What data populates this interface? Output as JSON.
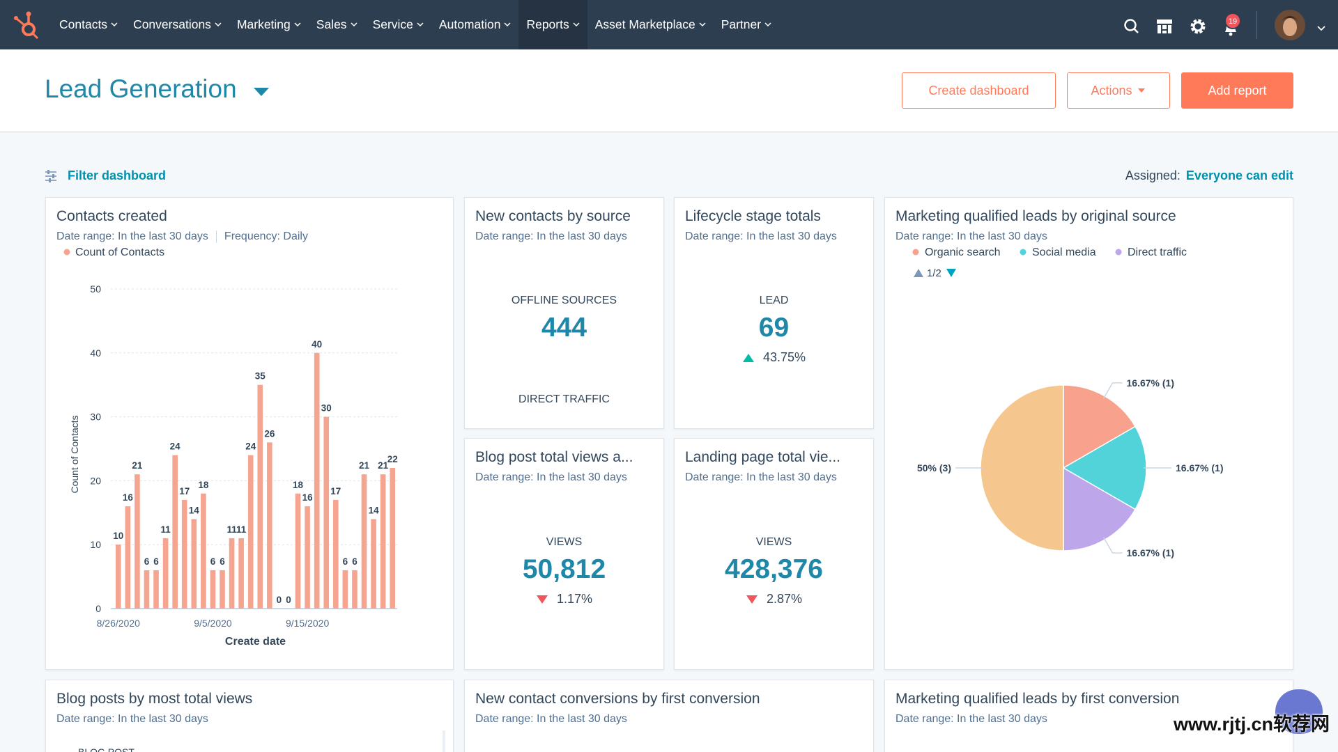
{
  "nav": {
    "items": [
      "Contacts",
      "Conversations",
      "Marketing",
      "Sales",
      "Service",
      "Automation",
      "Reports",
      "Asset Marketplace",
      "Partner"
    ],
    "active_index": 6,
    "notification_count": "19"
  },
  "header": {
    "title": "Lead Generation",
    "buttons": [
      "Create dashboard",
      "Actions",
      "Add report"
    ]
  },
  "toolbar": {
    "filter": "Filter dashboard",
    "assigned_label": "Assigned:",
    "assigned_value": "Everyone can edit"
  },
  "widgets": [
    {
      "title": "Contacts created",
      "date_range": "Date range: In the last 30 days",
      "frequency": "Frequency: Daily",
      "chart_data": {
        "type": "bar",
        "x_label": "Create date",
        "y_label": "Count of Contacts",
        "categories": [
          "8/26/2020",
          null,
          null,
          null,
          null,
          null,
          null,
          null,
          null,
          null,
          "9/5/2020",
          null,
          null,
          null,
          null,
          null,
          null,
          null,
          null,
          null,
          "9/15/2020",
          null,
          null,
          null,
          null,
          null,
          null,
          null,
          null,
          null
        ],
        "series": [
          {
            "name": "Count of Contacts",
            "color": "#f5a48f",
            "values": [
              10,
              16,
              21,
              6,
              6,
              11,
              24,
              17,
              14,
              18,
              6,
              6,
              11,
              11,
              24,
              35,
              26,
              0,
              0,
              18,
              16,
              40,
              30,
              17,
              6,
              6,
              21,
              14,
              21,
              22
            ]
          }
        ],
        "ylim": [
          0,
          50
        ],
        "yticks": [
          0,
          10,
          20,
          30,
          40,
          50
        ],
        "grid": true
      }
    },
    {
      "title": "New contacts by source",
      "date_range": "Date range: In the last 30 days",
      "kpis": [
        {
          "label": "OFFLINE SOURCES",
          "value": "444"
        },
        {
          "label": "DIRECT TRAFFIC"
        }
      ]
    },
    {
      "title": "Lifecycle stage totals",
      "date_range": "Date range: In the last 30 days",
      "kpis": [
        {
          "label": "LEAD",
          "value": "69",
          "change": "43.75%",
          "trend": "up"
        }
      ]
    },
    {
      "title": "Marketing qualified leads by original source",
      "date_range": "Date range: In the last 30 days",
      "chart_data": {
        "type": "pie",
        "categories": [
          "Organic search",
          "Social media",
          "Direct traffic",
          null
        ],
        "values": [
          1,
          1,
          1,
          3
        ],
        "value_labels": [
          "16.67% (1)",
          "16.67% (1)",
          "16.67% (1)",
          "50% (3)"
        ],
        "colors": [
          "#f8a18c",
          "#51d3d9",
          "#bda6ea",
          "#f5c78e"
        ],
        "legend_page": "1/2"
      }
    },
    {
      "title": "Blog post total views a...",
      "date_range": "Date range: In the last 30 days",
      "kpis": [
        {
          "label": "VIEWS",
          "value": "50,812",
          "change": "1.17%",
          "trend": "down"
        }
      ]
    },
    {
      "title": "Landing page total vie...",
      "date_range": "Date range: In the last 30 days",
      "kpis": [
        {
          "label": "VIEWS",
          "value": "428,376",
          "change": "2.87%",
          "trend": "down"
        }
      ]
    },
    {
      "title": "Blog posts by most total views",
      "date_range": "Date range: In the last 30 days",
      "column": "BLOG POST"
    },
    {
      "title": "New contact conversions by first conversion",
      "date_range": "Date range: In the last 30 days"
    },
    {
      "title": "Marketing qualified leads by first conversion",
      "date_range": "Date range: In the last 30 days"
    }
  ],
  "watermark": "www.rjtj.cn软荐网"
}
